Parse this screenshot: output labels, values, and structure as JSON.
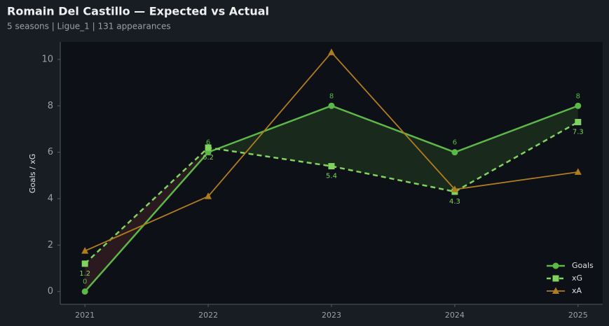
{
  "chart_data": {
    "type": "line",
    "title": "Romain Del Castillo — Expected vs Actual",
    "subtitle": "5 seasons | Ligue_1 | 131 appearances",
    "y_label": "Goals / xG",
    "x": [
      2021,
      2022,
      2023,
      2024,
      2025
    ],
    "xlim": [
      2020.8,
      2025.2
    ],
    "xticks": [
      2021,
      2022,
      2023,
      2024,
      2025
    ],
    "ylim": [
      -0.55,
      10.75
    ],
    "yticks": [
      0,
      2,
      4,
      6,
      8,
      10
    ],
    "grid": false,
    "legend": "lower right",
    "fill_above_color": "#1b2e1e",
    "fill_below_color": "#2e1c20",
    "series": [
      {
        "name": "Goals",
        "color": "#5cb848",
        "marker": "circle",
        "dashed": false,
        "width": 2.5,
        "show_labels": true,
        "label_side": "above",
        "values": [
          0,
          6,
          8,
          6,
          8
        ]
      },
      {
        "name": "xG",
        "color": "#7fd35e",
        "marker": "square",
        "dashed": true,
        "width": 2.5,
        "show_labels": true,
        "label_side": "below",
        "values": [
          1.2,
          6.2,
          5.4,
          4.3,
          7.3
        ]
      },
      {
        "name": "xA",
        "color": "#b07d1e",
        "marker": "triangle",
        "dashed": false,
        "width": 1.8,
        "show_labels": false,
        "label_side": "above",
        "values": [
          1.75,
          4.1,
          10.3,
          4.4,
          5.15
        ]
      }
    ]
  }
}
